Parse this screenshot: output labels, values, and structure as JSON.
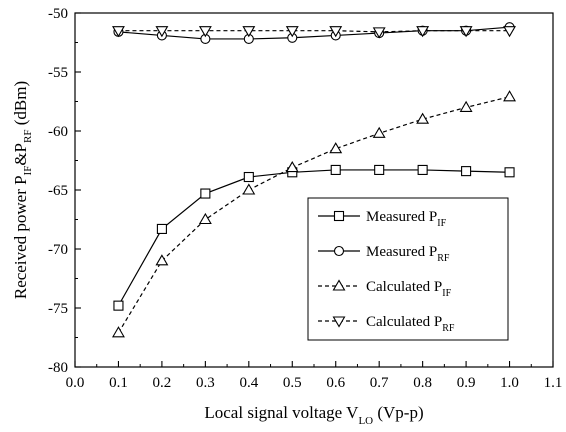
{
  "chart_data": {
    "type": "line",
    "xlabel": {
      "main": "Local signal voltage V",
      "sub": "LO",
      "tail": " (Vp-p)"
    },
    "ylabel": {
      "p1": "Received power P",
      "s1": "IF",
      "p2": "&P",
      "s2": "RF",
      "p3": " (dBm)"
    },
    "xlim": [
      0.0,
      1.1
    ],
    "ylim": [
      -80,
      -50
    ],
    "x_ticks": [
      0.0,
      0.1,
      0.2,
      0.3,
      0.4,
      0.5,
      0.6,
      0.7,
      0.8,
      0.9,
      1.0,
      1.1
    ],
    "x_tick_labels": [
      "0.0",
      "0.1",
      "0.2",
      "0.3",
      "0.4",
      "0.5",
      "0.6",
      "0.7",
      "0.8",
      "0.9",
      "1.0",
      "1.1"
    ],
    "y_ticks": [
      -80,
      -75,
      -70,
      -65,
      -60,
      -55,
      -50
    ],
    "y_tick_labels": [
      "-80",
      "-75",
      "-70",
      "-65",
      "-60",
      "-55",
      "-50"
    ],
    "grid": false,
    "legend_position": "lower-right",
    "x": [
      0.1,
      0.2,
      0.3,
      0.4,
      0.5,
      0.6,
      0.7,
      0.8,
      0.9,
      1.0
    ],
    "series": [
      {
        "name": "Measured P",
        "sub": "IF",
        "marker": "square",
        "dash": "solid",
        "values": [
          -74.8,
          -68.3,
          -65.3,
          -63.9,
          -63.5,
          -63.3,
          -63.3,
          -63.3,
          -63.4,
          -63.5
        ]
      },
      {
        "name": "Measured P",
        "sub": "RF",
        "marker": "circle",
        "dash": "solid",
        "values": [
          -51.6,
          -51.9,
          -52.2,
          -52.2,
          -52.1,
          -51.9,
          -51.7,
          -51.5,
          -51.5,
          -51.2
        ]
      },
      {
        "name": "Calculated P",
        "sub": "IF",
        "marker": "triangle-up",
        "dash": "dashed",
        "values": [
          -77.1,
          -71.0,
          -67.5,
          -65.0,
          -63.1,
          -61.5,
          -60.2,
          -59.0,
          -58.0,
          -57.1
        ]
      },
      {
        "name": "Calculated P",
        "sub": "RF",
        "marker": "triangle-down",
        "dash": "dashed",
        "values": [
          -51.5,
          -51.5,
          -51.5,
          -51.5,
          -51.5,
          -51.5,
          -51.6,
          -51.5,
          -51.5,
          -51.5
        ]
      }
    ]
  }
}
